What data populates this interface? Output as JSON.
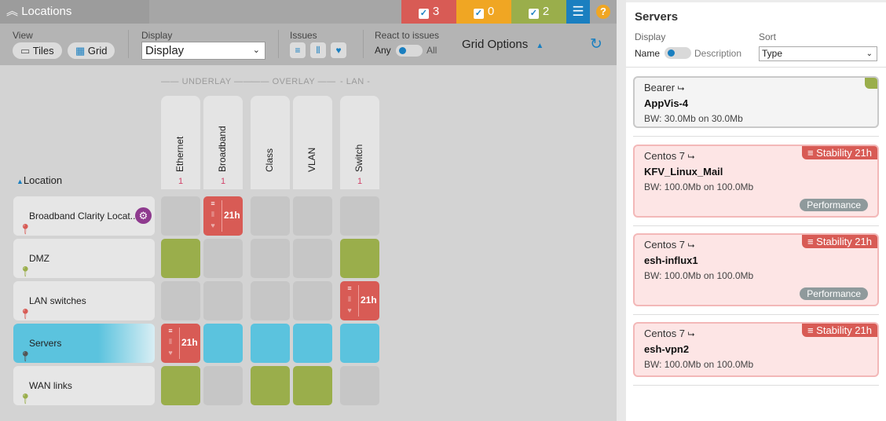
{
  "header": {
    "title": "Locations",
    "badges": [
      {
        "count": "3",
        "color": "#d85b55"
      },
      {
        "count": "0",
        "color": "#f0a623"
      },
      {
        "count": "2",
        "color": "#9aae4b"
      }
    ],
    "filter_color": "#1a7fc0",
    "help": "?"
  },
  "toolbar": {
    "view_label": "View",
    "tiles": "Tiles",
    "grid": "Grid",
    "display_label": "Display",
    "display_value": "Display",
    "issues_label": "Issues",
    "react_label": "React to issues",
    "any": "Any",
    "all": "All",
    "grid_options": "Grid Options"
  },
  "grid": {
    "groups": [
      "UNDERLAY",
      "OVERLAY",
      "LAN"
    ],
    "location_header": "Location",
    "columns": [
      {
        "name": "Ethernet",
        "count": "1"
      },
      {
        "name": "Broadband",
        "count": "1"
      },
      {
        "name": "Class",
        "count": ""
      },
      {
        "name": "VLAN",
        "count": ""
      },
      {
        "name": "Switch",
        "count": "1"
      }
    ],
    "rows": [
      {
        "name": "Broadband Clarity Locat...",
        "pin_color": "#d85b55",
        "cells": [
          "grey",
          "red",
          "grey",
          "grey",
          "grey"
        ]
      },
      {
        "name": "DMZ",
        "pin_color": "#9aae4b",
        "cells": [
          "green",
          "grey",
          "grey",
          "grey",
          "green"
        ]
      },
      {
        "name": "LAN switches",
        "pin_color": "#d85b55",
        "cells": [
          "grey",
          "grey",
          "grey",
          "grey",
          "red"
        ]
      },
      {
        "name": "Servers",
        "pin_color": "#555555",
        "selected": true,
        "cells": [
          "red",
          "blue",
          "blue",
          "blue",
          "blue"
        ]
      },
      {
        "name": "WAN links",
        "pin_color": "#9aae4b",
        "cells": [
          "green",
          "grey",
          "green",
          "green",
          "grey"
        ]
      }
    ],
    "red_time": "21h"
  },
  "panel": {
    "title": "Servers",
    "display_label": "Display",
    "name": "Name",
    "description": "Description",
    "sort_label": "Sort",
    "sort_value": "Type",
    "cards": [
      {
        "type": "Bearer",
        "name": "AppVis-4",
        "bw": "BW: 30.0Mb on 30.0Mb",
        "status": "ok"
      },
      {
        "type": "Centos 7",
        "name": "KFV_Linux_Mail",
        "bw": "BW: 100.0Mb on 100.0Mb",
        "status": "error",
        "issue": "Stability 21h",
        "tag": "Performance"
      },
      {
        "type": "Centos 7",
        "name": "esh-influx1",
        "bw": "BW: 100.0Mb on 100.0Mb",
        "status": "error",
        "issue": "Stability 21h",
        "tag": "Performance"
      },
      {
        "type": "Centos 7",
        "name": "esh-vpn2",
        "bw": "BW: 100.0Mb on 100.0Mb",
        "status": "error",
        "issue": "Stability 21h"
      }
    ]
  }
}
